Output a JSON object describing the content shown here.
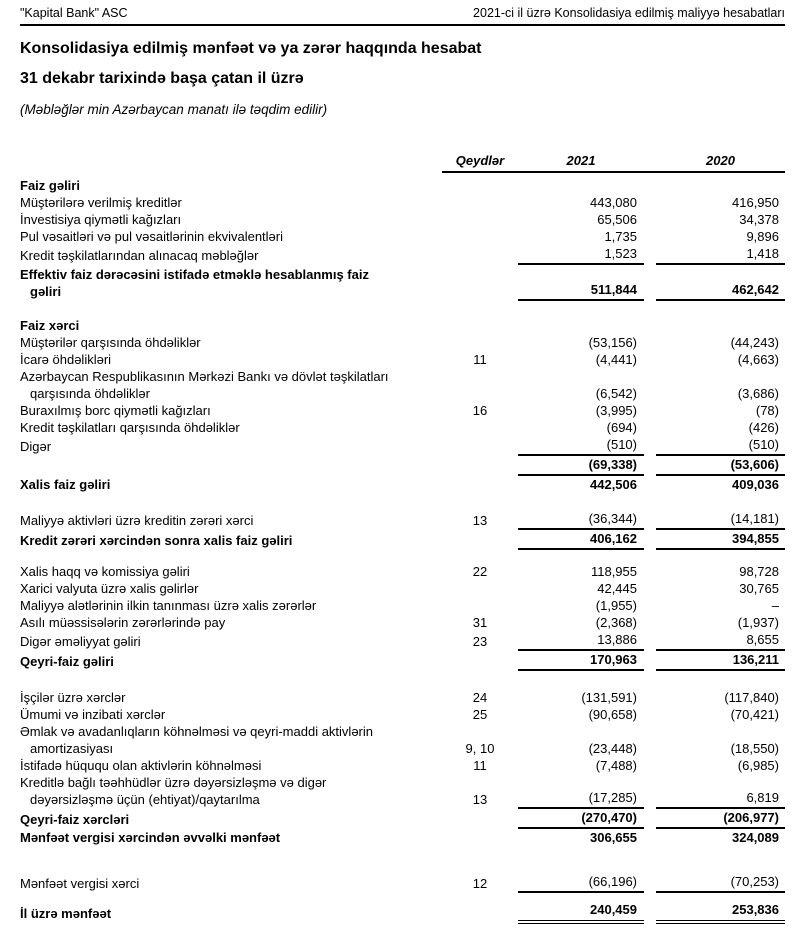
{
  "page_header": {
    "company": "\"Kapital Bank\" ASC",
    "report": "2021-ci il üzrə Konsolidasiya edilmiş maliyyə hesabatları"
  },
  "title": "Konsolidasiya edilmiş mənfəət və ya zərər haqqında hesabat",
  "subtitle": "31 dekabr tarixində başa çatan il üzrə",
  "currency_note": "(Məbləğlər min Azərbaycan manatı ilə təqdim edilir)",
  "colors": {
    "text": "#000000",
    "background": "#ffffff",
    "rule": "#000000"
  },
  "table": {
    "columns": {
      "notes": "Qeydlər",
      "y2021": "2021",
      "y2020": "2020"
    },
    "rows": [
      {
        "label": "Faiz gəliri",
        "bold": true,
        "pad_top": 5
      },
      {
        "label": "Müştərilərə verilmiş kreditlər",
        "v2021": "443,080",
        "v2020": "416,950"
      },
      {
        "label": "İnvestisiya qiymətli kağızları",
        "v2021": "65,506",
        "v2020": "34,378"
      },
      {
        "label": "Pul vəsaitləri və pul vəsaitlərinin ekvivalentləri",
        "v2021": "1,735",
        "v2020": "9,896"
      },
      {
        "label": "Kredit təşkilatlarından alınacaq məbləğlər",
        "v2021": "1,523",
        "v2020": "1,418",
        "underline": true
      },
      {
        "label": "Effektiv faiz dərəcəsini istifadə etməklə hesablanmış faiz",
        "label2": "gəliri",
        "bold": true,
        "v2021": "511,844",
        "v2020": "462,642",
        "underline": true,
        "pad_top": 2
      },
      {
        "label": "Faiz xərci",
        "bold": true,
        "space_before": 17
      },
      {
        "label": "Müştərilər qarşısında öhdəliklər",
        "v2021": "(53,156)",
        "v2020": "(44,243)"
      },
      {
        "label": "İcarə öhdəlikləri",
        "note": "11",
        "v2021": "(4,441)",
        "v2020": "(4,663)"
      },
      {
        "label": "Azərbaycan Respublikasının Mərkəzi Bankı və dövlət təşkilatları",
        "label2": "qarşısında öhdəliklər",
        "v2021": "(6,542)",
        "v2020": "(3,686)"
      },
      {
        "label": "Buraxılmış borc qiymətli kağızları",
        "note": "16",
        "v2021": "(3,995)",
        "v2020": "(78)"
      },
      {
        "label": "Kredit təşkilatları qarşısında öhdəliklər",
        "v2021": "(694)",
        "v2020": "(426)"
      },
      {
        "label": "Digər",
        "v2021": "(510)",
        "v2020": "(510)",
        "underline": true
      },
      {
        "label": "",
        "bold": true,
        "v2021": "(69,338)",
        "v2020": "(53,606)",
        "underline": true
      },
      {
        "label": "Xalis faiz gəliri",
        "bold": true,
        "v2021": "442,506",
        "v2020": "409,036"
      },
      {
        "label": "Maliyyə aktivləri üzrə kreditin zərəri xərci",
        "note": "13",
        "v2021": "(36,344)",
        "v2020": "(14,181)",
        "underline": true,
        "space_before": 17
      },
      {
        "label": "Kredit zərəri xərcindən sonra xalis faiz gəliri",
        "bold": true,
        "v2021": "406,162",
        "v2020": "394,855",
        "underline": true
      },
      {
        "label": "Xalis haqq və komissiya gəliri",
        "note": "22",
        "v2021": "118,955",
        "v2020": "98,728",
        "space_before": 14
      },
      {
        "label": "Xarici valyuta üzrə xalis gəlirlər",
        "v2021": "42,445",
        "v2020": "30,765"
      },
      {
        "label": "Maliyyə alətlərinin ilkin tanınması üzrə xalis zərərlər",
        "v2021": "(1,955)",
        "v2020": "–"
      },
      {
        "label": "Asılı müəssisələrin zərərlərində pay",
        "note": "31",
        "v2021": "(2,368)",
        "v2020": "(1,937)"
      },
      {
        "label": "Digər əməliyyat gəliri",
        "note": "23",
        "v2021": "13,886",
        "v2020": "8,655",
        "underline": true
      },
      {
        "label": "Qeyri-faiz gəliri",
        "bold": true,
        "v2021": "170,963",
        "v2020": "136,211",
        "underline": true
      },
      {
        "label": "İşçilər üzrə xərclər",
        "note": "24",
        "v2021": "(131,591)",
        "v2020": "(117,840)",
        "space_before": 19
      },
      {
        "label": "Ümumi və inzibati xərclər",
        "note": "25",
        "v2021": "(90,658)",
        "v2020": "(70,421)"
      },
      {
        "label": "Əmlak və avadanlıqların köhnəlməsi və qeyri-maddi aktivlərin",
        "label2": "amortizasiyası",
        "note": "9, 10",
        "v2021": "(23,448)",
        "v2020": "(18,550)"
      },
      {
        "label": "İstifadə hüququ olan aktivlərin köhnəlməsi",
        "note": "11",
        "v2021": "(7,488)",
        "v2020": "(6,985)"
      },
      {
        "label": "Kreditlə bağlı təəhhüdlər üzrə dəyərsizləşmə və digər",
        "label2": "dəyərsizləşmə üçün (ehtiyat)/qaytarılma",
        "note": "13",
        "v2021": "(17,285)",
        "v2020": "6,819",
        "underline": true
      },
      {
        "label": "Qeyri-faiz xərcləri",
        "bold": true,
        "v2021": "(270,470)",
        "v2020": "(206,977)",
        "underline": true
      },
      {
        "label": "Mənfəət vergisi xərcindən əvvəlki mənfəət",
        "bold": true,
        "v2021": "306,655",
        "v2020": "324,089"
      },
      {
        "label": "Mənfəət vergisi xərci",
        "note": "12",
        "v2021": "(66,196)",
        "v2020": "(70,253)",
        "underline": true,
        "space_before": 27
      },
      {
        "label": "İl üzrə mənfəət",
        "bold": true,
        "v2021": "240,459",
        "v2020": "253,836",
        "double": true,
        "space_before": 9
      }
    ]
  }
}
